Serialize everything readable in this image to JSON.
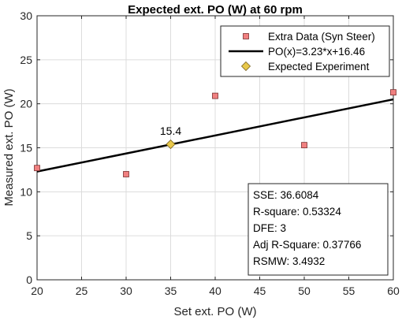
{
  "chart_data": {
    "type": "scatter",
    "title": "Expected ext. PO (W) at 60 rpm",
    "xlabel": "Set ext. PO (W)",
    "ylabel": "Measured ext. PO (W)",
    "xlim": [
      20,
      60
    ],
    "ylim": [
      0,
      30
    ],
    "xticks": [
      20,
      25,
      30,
      35,
      40,
      45,
      50,
      55,
      60
    ],
    "yticks": [
      0,
      5,
      10,
      15,
      20,
      25,
      30
    ],
    "grid": true,
    "legend_position": "top-right",
    "series": [
      {
        "name": "Extra Data (Syn Steer)",
        "kind": "scatter",
        "marker": "square",
        "color": "#f08080",
        "x": [
          20,
          30,
          40,
          50,
          60
        ],
        "y": [
          12.7,
          12.0,
          20.9,
          15.3,
          21.3
        ]
      },
      {
        "name": "PO(x)=3.23*x+16.46",
        "kind": "line",
        "color": "#000000",
        "x": [
          20,
          60
        ],
        "y": [
          12.3,
          20.5
        ]
      },
      {
        "name": "Expected Experiment",
        "kind": "scatter",
        "marker": "diamond",
        "color": "#e8c84a",
        "x": [
          35
        ],
        "y": [
          15.4
        ]
      }
    ],
    "annotations": [
      {
        "text": "15.4",
        "x": 35,
        "y": 15.4
      }
    ],
    "stats": [
      "SSE: 36.6084",
      "R-square: 0.53324",
      "DFE: 3",
      "Adj R-Square: 0.37766",
      "RSMW: 3.4932"
    ]
  }
}
